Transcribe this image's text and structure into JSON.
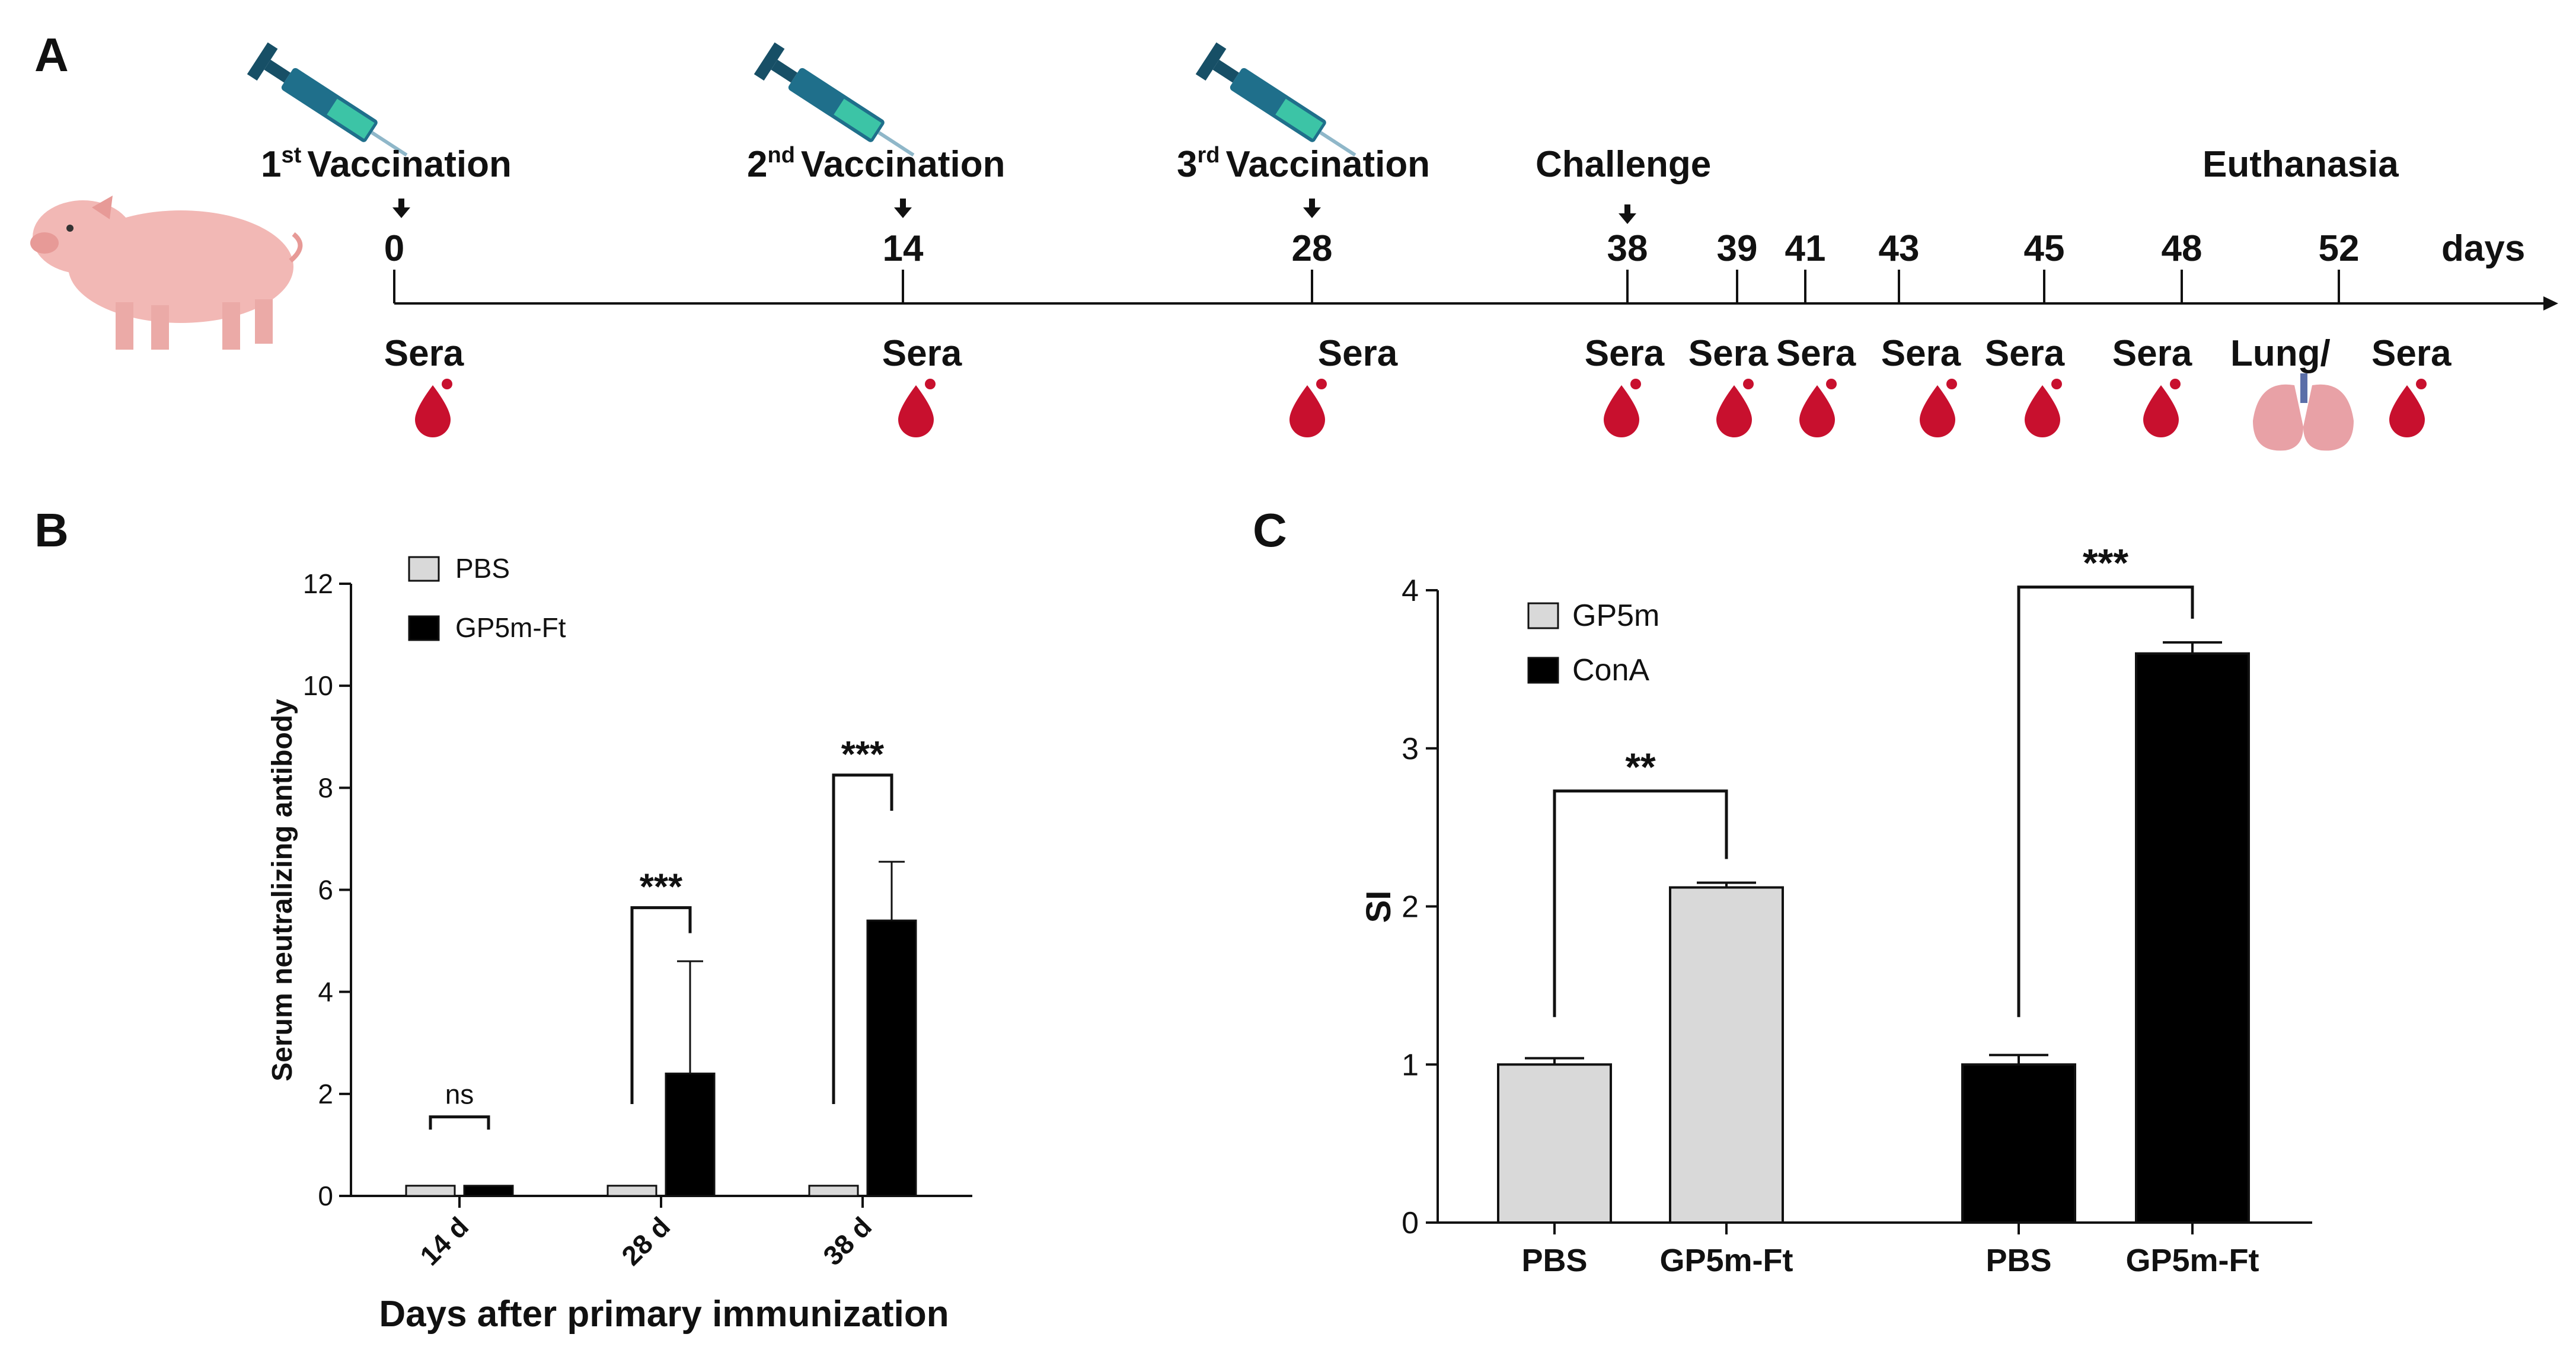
{
  "panels": {
    "a": "A",
    "b": "B",
    "c": "C"
  },
  "timeline": {
    "vaccinations": [
      {
        "sup": "st",
        "label": "1",
        "text": "Vaccination",
        "day": 0
      },
      {
        "sup": "nd",
        "label": "2",
        "text": "Vaccination",
        "day": 14
      },
      {
        "sup": "rd",
        "label": "3",
        "text": "Vaccination",
        "day": 28
      }
    ],
    "challenge": "Challenge",
    "euthanasia": "Euthanasia",
    "days_unit": "days",
    "days": [
      0,
      14,
      28,
      38,
      39,
      41,
      43,
      45,
      48,
      52
    ],
    "sera_label": "Sera",
    "lung_label": "Lung/",
    "final_sera_label": "Sera",
    "colors": {
      "blood": "#c8102e",
      "pig": "#f2b8b5",
      "syringe": "#1f6f8b"
    },
    "icons": [
      "pig-icon",
      "syringe-icon",
      "blood-drop-icon",
      "lung-icon",
      "down-arrow-icon"
    ]
  },
  "chart_data": [
    {
      "panel": "B",
      "type": "bar",
      "categories": [
        "14 d",
        "28 d",
        "38 d"
      ],
      "series": [
        {
          "name": "PBS",
          "color": "#d9d9d9",
          "values": [
            0.2,
            0.2,
            0.2
          ],
          "errors": [
            0,
            0,
            0
          ]
        },
        {
          "name": "GP5m-Ft",
          "color": "#000000",
          "values": [
            0.2,
            2.4,
            5.4
          ],
          "errors": [
            0,
            2.2,
            1.15
          ]
        }
      ],
      "significance": [
        "ns",
        "***",
        "***"
      ],
      "xlabel": "Days after primary immunization",
      "ylabel": "Serum neutralizing antibody",
      "ylim": [
        0,
        12
      ],
      "yticks": [
        0,
        2,
        4,
        6,
        8,
        10,
        12
      ],
      "legend": "top-left",
      "grid": false
    },
    {
      "panel": "C",
      "type": "bar",
      "groups": [
        {
          "name": "GP5m",
          "color": "#d9d9d9",
          "categories": [
            "PBS",
            "GP5m-Ft"
          ],
          "values": [
            1.0,
            2.12
          ],
          "errors": [
            0.04,
            0.03
          ],
          "significance": "**"
        },
        {
          "name": "ConA",
          "color": "#000000",
          "categories": [
            "PBS",
            "GP5m-Ft"
          ],
          "values": [
            1.0,
            3.6
          ],
          "errors": [
            0.06,
            0.07
          ],
          "significance": "***"
        }
      ],
      "ylabel": "SI",
      "ylim": [
        0,
        4
      ],
      "yticks": [
        0,
        1,
        2,
        3,
        4
      ],
      "legend": "top-left",
      "grid": false
    }
  ]
}
